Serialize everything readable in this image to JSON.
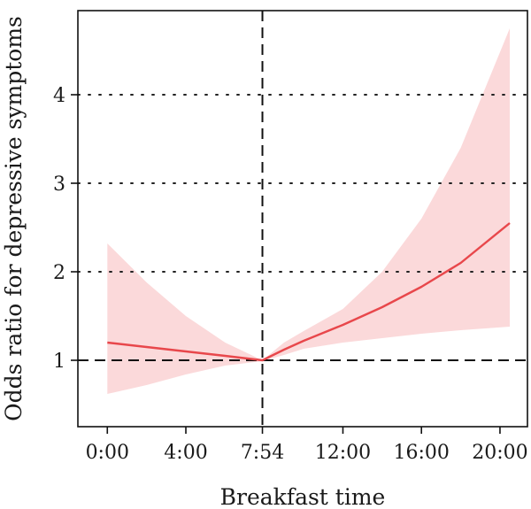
{
  "chart_data": {
    "type": "line",
    "xlabel": "Breakfast time",
    "ylabel": "Odds ratio for depressive symptoms",
    "x_unit": "hours",
    "xlim": [
      -1.5,
      21.4
    ],
    "ylim": [
      0.25,
      4.95
    ],
    "x_ticks": [
      {
        "value": 0,
        "label": "0:00"
      },
      {
        "value": 4,
        "label": "4:00"
      },
      {
        "value": 7.9,
        "label": "7:54"
      },
      {
        "value": 12,
        "label": "12:00"
      },
      {
        "value": 16,
        "label": "16:00"
      },
      {
        "value": 20,
        "label": "20:00"
      }
    ],
    "y_ticks": [
      {
        "value": 1,
        "label": "1"
      },
      {
        "value": 2,
        "label": "2"
      },
      {
        "value": 3,
        "label": "3"
      },
      {
        "value": 4,
        "label": "4"
      }
    ],
    "dotted_gridlines_y": [
      2,
      3,
      4
    ],
    "reference_lines": {
      "horizontal_y": 1,
      "vertical_x": 7.9
    },
    "series": [
      {
        "style": "line",
        "color": "#e8474b",
        "x": [
          0,
          2,
          4,
          6,
          7.9,
          9,
          10,
          12,
          14,
          16,
          18,
          20.5
        ],
        "y": [
          1.2,
          1.15,
          1.1,
          1.05,
          1.0,
          1.12,
          1.22,
          1.4,
          1.6,
          1.83,
          2.1,
          2.55
        ]
      },
      {
        "style": "band",
        "color": "#fbd9da",
        "x": [
          0,
          2,
          4,
          6,
          7.9,
          9,
          10,
          12,
          14,
          16,
          18,
          20.5
        ],
        "lower": [
          0.62,
          0.72,
          0.84,
          0.94,
          0.99,
          1.06,
          1.13,
          1.2,
          1.25,
          1.3,
          1.34,
          1.38
        ],
        "upper": [
          2.32,
          1.88,
          1.5,
          1.2,
          1.0,
          1.2,
          1.33,
          1.58,
          2.0,
          2.6,
          3.4,
          4.75
        ]
      }
    ]
  }
}
